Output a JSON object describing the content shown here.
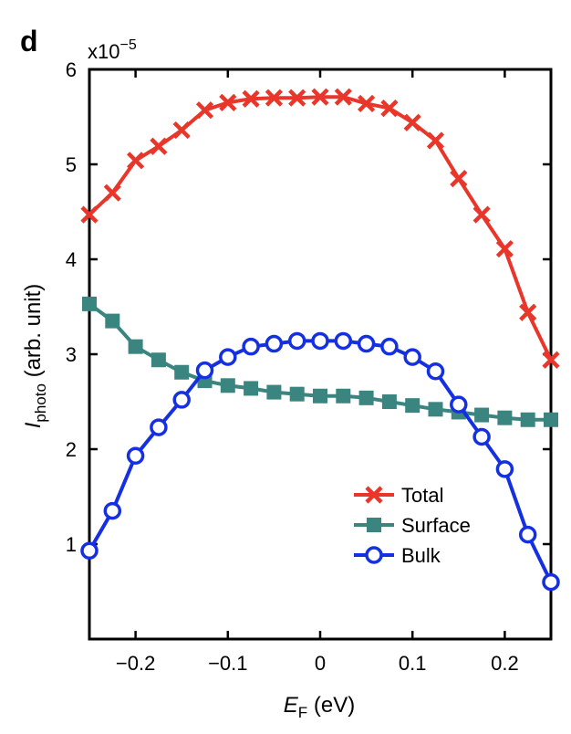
{
  "panel_label": "d",
  "multiplier": {
    "base": "x10",
    "exponent": "−5"
  },
  "chart_data": {
    "type": "line",
    "xlabel_main": "E",
    "xlabel_sub": "F",
    "xlabel_rest": " (eV)",
    "ylabel_main": "I",
    "ylabel_sub": "photo",
    "ylabel_rest": " (arb. unit)",
    "xlim": [
      -0.25,
      0.25
    ],
    "ylim": [
      0,
      6
    ],
    "x_ticks": [
      -0.2,
      -0.1,
      0,
      0.1,
      0.2
    ],
    "x_tick_labels": [
      "−0.2",
      "−0.1",
      "0",
      "0.1",
      "0.2"
    ],
    "y_ticks": [
      1,
      2,
      3,
      4,
      5,
      6
    ],
    "y_tick_labels": [
      "1",
      "2",
      "3",
      "4",
      "5",
      "6"
    ],
    "x": [
      -0.25,
      -0.225,
      -0.2,
      -0.175,
      -0.15,
      -0.125,
      -0.1,
      -0.075,
      -0.05,
      -0.025,
      0,
      0.025,
      0.05,
      0.075,
      0.1,
      0.125,
      0.15,
      0.175,
      0.2,
      0.225,
      0.25
    ],
    "legend_position": "lower-right",
    "series": [
      {
        "name": "Total",
        "color": "#e8372a",
        "marker": "x",
        "values": [
          4.47,
          4.7,
          5.04,
          5.19,
          5.36,
          5.57,
          5.65,
          5.69,
          5.7,
          5.7,
          5.71,
          5.71,
          5.64,
          5.59,
          5.44,
          5.25,
          4.85,
          4.47,
          4.11,
          3.44,
          2.94
        ]
      },
      {
        "name": "Surface",
        "color": "#3a8580",
        "marker": "square",
        "values": [
          3.53,
          3.35,
          3.08,
          2.94,
          2.81,
          2.72,
          2.67,
          2.64,
          2.6,
          2.58,
          2.56,
          2.56,
          2.54,
          2.5,
          2.46,
          2.42,
          2.39,
          2.36,
          2.33,
          2.31,
          2.31
        ]
      },
      {
        "name": "Bulk",
        "color": "#1530e0",
        "marker": "circle",
        "values": [
          0.93,
          1.35,
          1.93,
          2.23,
          2.52,
          2.83,
          2.97,
          3.08,
          3.11,
          3.14,
          3.14,
          3.14,
          3.11,
          3.08,
          2.97,
          2.82,
          2.47,
          2.13,
          1.79,
          1.1,
          0.6
        ]
      }
    ]
  }
}
